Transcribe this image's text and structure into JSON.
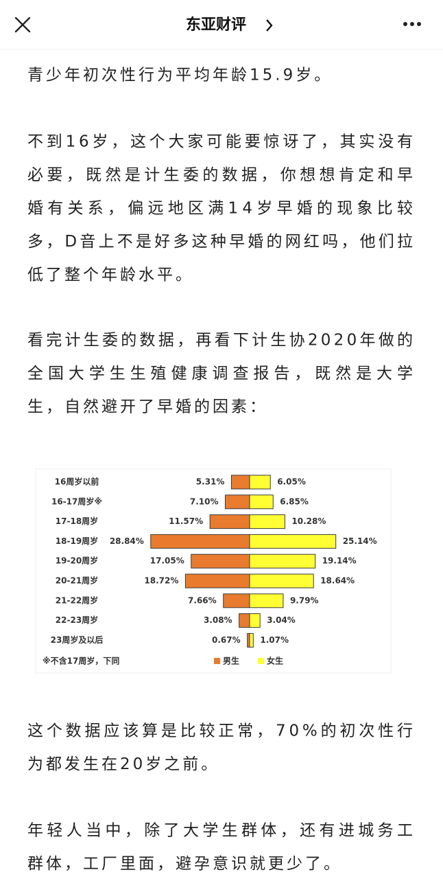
{
  "header": {
    "title": "东亚财评"
  },
  "paragraphs": [
    {
      "lines": [
        "青少年初次性行为平均年龄15.9岁。"
      ]
    },
    {
      "lines": [
        "不到16岁，这个大家可能要惊讶了，其实没有",
        "必要，既然是计生委的数据，你想想肯定和早",
        "婚有关系，偏远地区满14岁早婚的现象比较",
        "多，D音上不是好多这种早婚的网红吗，他们拉",
        "低了整个年龄水平。"
      ]
    },
    {
      "lines": [
        "看完计生委的数据，再看下计生协2020年做的",
        "全国大学生生殖健康调查报告，既然是大学",
        "生，自然避开了早婚的因素："
      ]
    },
    {
      "lines": [
        "这个数据应该算是比较正常，70%的初次性行",
        "为都发生在20岁之前。"
      ]
    },
    {
      "lines": [
        "年轻人当中，除了大学生群体，还有进城务工",
        "群体，工厂里面，避孕意识就更少了。"
      ]
    }
  ],
  "chart_data": {
    "type": "butterfly",
    "categories": [
      "16周岁以前",
      "16-17周岁※",
      "17-18周岁",
      "18-19周岁",
      "19-20周岁",
      "20-21周岁",
      "21-22周岁",
      "22-23周岁",
      "23周岁及以后"
    ],
    "series": [
      {
        "name": "男生",
        "color": "#e97b2e",
        "values": [
          5.31,
          7.1,
          11.57,
          28.84,
          17.05,
          18.72,
          7.66,
          3.08,
          0.67
        ],
        "value_labels": [
          "5.31%",
          "7.10%",
          "11.57%",
          "28.84%",
          "17.05%",
          "18.72%",
          "7.66%",
          "3.08%",
          "0.67%"
        ]
      },
      {
        "name": "女生",
        "color": "#ffff33",
        "values": [
          6.05,
          6.85,
          10.28,
          25.14,
          19.14,
          18.64,
          9.79,
          3.04,
          1.07
        ],
        "value_labels": [
          "6.05%",
          "6.85%",
          "10.28%",
          "25.14%",
          "19.14%",
          "18.64%",
          "9.79%",
          "3.04%",
          "1.07%"
        ]
      }
    ],
    "note": "※不含17周岁，下同"
  }
}
